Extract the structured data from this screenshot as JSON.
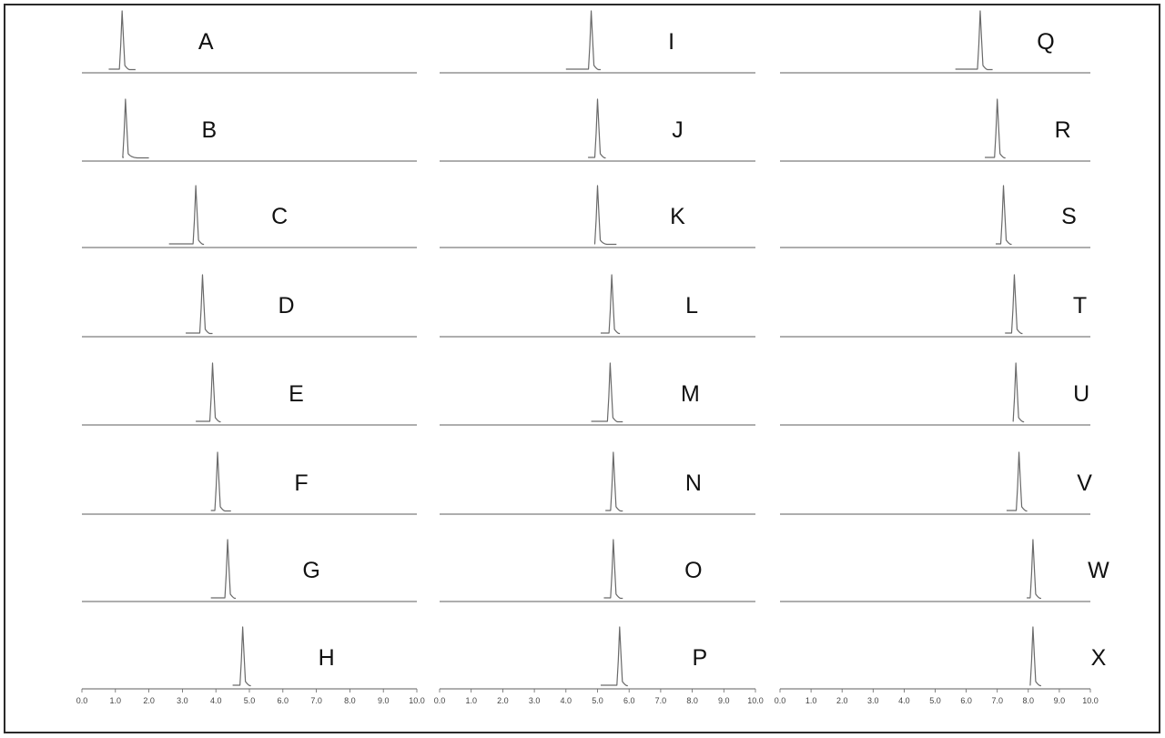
{
  "chart_data": {
    "type": "line",
    "description_units": "retention time (axis units)",
    "xlim": [
      0.0,
      10.0
    ],
    "tick_labels": [
      "0.0",
      "1.0",
      "2.0",
      "3.0",
      "4.0",
      "5.0",
      "6.0",
      "7.0",
      "8.0",
      "9.0",
      "10.0"
    ],
    "grid": false,
    "columns": [
      {
        "traces": [
          {
            "label": "A",
            "peak": 1.2,
            "start": 0.8,
            "end": 1.6
          },
          {
            "label": "B",
            "peak": 1.3,
            "start": 1.25,
            "end": 2.0
          },
          {
            "label": "C",
            "peak": 3.4,
            "start": 2.6,
            "end": 3.6
          },
          {
            "label": "D",
            "peak": 3.6,
            "start": 3.1,
            "end": 3.9
          },
          {
            "label": "E",
            "peak": 3.9,
            "start": 3.4,
            "end": 4.1
          },
          {
            "label": "F",
            "peak": 4.05,
            "start": 3.85,
            "end": 4.45
          },
          {
            "label": "G",
            "peak": 4.35,
            "start": 3.85,
            "end": 4.55
          },
          {
            "label": "H",
            "peak": 4.8,
            "start": 4.5,
            "end": 4.9
          }
        ]
      },
      {
        "traces": [
          {
            "label": "I",
            "peak": 4.8,
            "start": 4.0,
            "end": 5.1
          },
          {
            "label": "J",
            "peak": 5.0,
            "start": 4.7,
            "end": 5.2
          },
          {
            "label": "K",
            "peak": 5.0,
            "start": 4.9,
            "end": 5.6
          },
          {
            "label": "L",
            "peak": 5.45,
            "start": 5.1,
            "end": 5.6
          },
          {
            "label": "M",
            "peak": 5.4,
            "start": 4.8,
            "end": 5.8
          },
          {
            "label": "N",
            "peak": 5.5,
            "start": 5.25,
            "end": 5.8
          },
          {
            "label": "O",
            "peak": 5.5,
            "start": 5.2,
            "end": 5.8
          },
          {
            "label": "P",
            "peak": 5.7,
            "start": 5.1,
            "end": 5.95
          }
        ]
      },
      {
        "traces": [
          {
            "label": "Q",
            "peak": 6.45,
            "start": 5.65,
            "end": 6.85
          },
          {
            "label": "R",
            "peak": 7.0,
            "start": 6.6,
            "end": 7.2
          },
          {
            "label": "S",
            "peak": 7.2,
            "start": 6.95,
            "end": 7.45
          },
          {
            "label": "T",
            "peak": 7.55,
            "start": 7.25,
            "end": 7.8
          },
          {
            "label": "U",
            "peak": 7.6,
            "start": 7.5,
            "end": 7.85
          },
          {
            "label": "V",
            "peak": 7.7,
            "start": 7.3,
            "end": 7.85
          },
          {
            "label": "W",
            "peak": 8.15,
            "start": 7.95,
            "end": 8.35
          },
          {
            "label": "X",
            "peak": 8.15,
            "start": 8.05,
            "end": 8.35
          }
        ]
      }
    ]
  }
}
